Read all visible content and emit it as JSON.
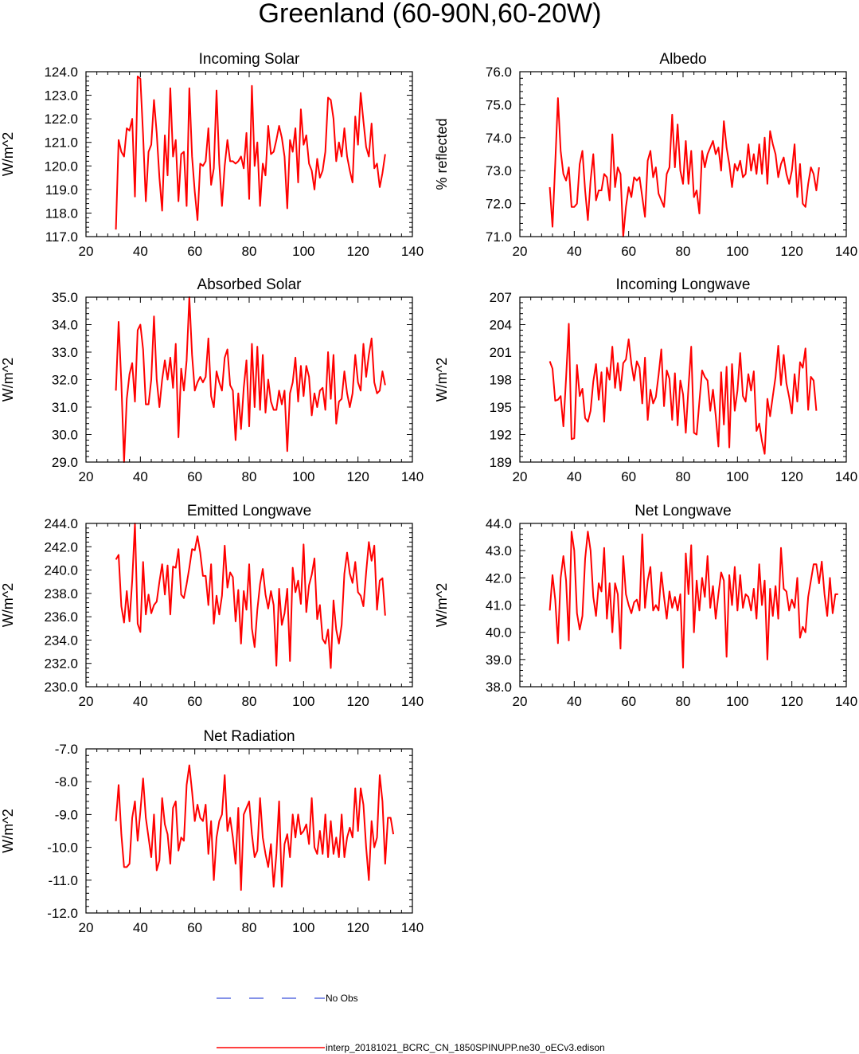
{
  "page_title": "Greenland (60-90N,60-20W)",
  "colors": {
    "model": "#ff0000",
    "obs": "#5b6ee1",
    "axis": "#000000"
  },
  "legend": {
    "obs_label": "No Obs",
    "model_label": "interp_20181021_BCRC_CN_1850SPINUPP.ne30_oECv3.edison"
  },
  "chart_data": [
    {
      "type": "line",
      "title": "Incoming Solar",
      "ylabel": "W/m^2",
      "xlim": [
        20,
        140
      ],
      "ylim": [
        117.0,
        124.0
      ],
      "xticks": [
        "20",
        "40",
        "60",
        "80",
        "100",
        "120",
        "140"
      ],
      "yticks": [
        "117.0",
        "118.0",
        "119.0",
        "120.0",
        "121.0",
        "122.0",
        "123.0",
        "124.0"
      ],
      "series": [
        {
          "name": "interp_20181021_BCRC_CN_1850SPINUPP.ne30_oECv3.edison",
          "x_start": 31,
          "values": [
            117.3,
            121.1,
            120.6,
            120.4,
            121.6,
            121.5,
            122.0,
            118.7,
            123.8,
            123.7,
            121.3,
            118.5,
            120.6,
            120.9,
            122.8,
            121.4,
            119.5,
            118.1,
            121.3,
            119.6,
            123.3,
            120.4,
            121.1,
            118.5,
            120.5,
            120.6,
            118.3,
            123.3,
            120.4,
            118.9,
            117.7,
            120.1,
            120.0,
            120.2,
            121.6,
            119.2,
            119.9,
            123.2,
            120.1,
            118.3,
            120.0,
            121.1,
            120.2,
            120.2,
            120.1,
            120.2,
            120.4,
            119.9,
            121.4,
            118.6,
            123.4,
            120.0,
            121.0,
            118.3,
            120.1,
            119.6,
            121.7,
            120.5,
            120.6,
            121.1,
            121.7,
            121.2,
            120.4,
            118.2,
            121.1,
            120.6,
            121.6,
            119.3,
            122.4,
            120.9,
            121.3,
            120.1,
            119.8,
            119.0,
            120.3,
            119.5,
            119.8,
            120.6,
            122.9,
            122.8,
            122.0,
            120.2,
            121.0,
            120.4,
            121.6,
            120.4,
            119.8,
            119.3,
            122.1,
            120.9,
            123.1,
            121.9,
            120.8,
            120.4,
            121.8,
            119.9,
            120.1,
            119.1,
            119.7,
            120.5
          ]
        }
      ]
    },
    {
      "type": "line",
      "title": "Albedo",
      "ylabel": "% reflected",
      "xlim": [
        20,
        140
      ],
      "ylim": [
        71.0,
        76.0
      ],
      "xticks": [
        "20",
        "40",
        "60",
        "80",
        "100",
        "120",
        "140"
      ],
      "yticks": [
        "71.0",
        "72.0",
        "73.0",
        "74.0",
        "75.0",
        "76.0"
      ],
      "series": [
        {
          "name": "interp_20181021_BCRC_CN_1850SPINUPP.ne30_oECv3.edison",
          "x_start": 31,
          "values": [
            72.5,
            71.3,
            73.2,
            75.2,
            73.6,
            72.9,
            72.7,
            73.1,
            71.9,
            71.9,
            72.0,
            73.2,
            73.6,
            72.4,
            71.5,
            72.7,
            73.5,
            72.1,
            72.4,
            72.4,
            72.9,
            72.8,
            72.1,
            74.1,
            72.5,
            73.1,
            72.9,
            71.0,
            71.9,
            72.5,
            72.2,
            72.8,
            72.7,
            72.8,
            72.2,
            71.6,
            73.3,
            73.6,
            72.8,
            73.1,
            72.3,
            72.1,
            71.9,
            72.9,
            73.1,
            74.7,
            73.1,
            74.4,
            73.0,
            72.6,
            73.9,
            72.6,
            73.6,
            72.2,
            72.4,
            71.7,
            73.6,
            73.1,
            73.5,
            73.7,
            73.9,
            73.5,
            73.7,
            73.0,
            74.5,
            73.7,
            73.2,
            72.5,
            73.2,
            73.0,
            73.3,
            72.8,
            72.9,
            73.8,
            73.0,
            73.5,
            72.9,
            73.8,
            72.9,
            74.0,
            72.6,
            74.2,
            73.8,
            73.5,
            72.8,
            73.2,
            73.4,
            72.9,
            72.6,
            73.0,
            73.8,
            72.2,
            73.2,
            72.0,
            71.9,
            72.6,
            73.1,
            72.9,
            72.4,
            73.1
          ]
        }
      ]
    },
    {
      "type": "line",
      "title": "Absorbed Solar",
      "ylabel": "W/m^2",
      "xlim": [
        20,
        140
      ],
      "ylim": [
        29.0,
        35.0
      ],
      "xticks": [
        "20",
        "40",
        "60",
        "80",
        "100",
        "120",
        "140"
      ],
      "yticks": [
        "29.0",
        "30.0",
        "31.0",
        "32.0",
        "33.0",
        "34.0",
        "35.0"
      ],
      "series": [
        {
          "name": "interp_20181021_BCRC_CN_1850SPINUPP.ne30_oECv3.edison",
          "x_start": 31,
          "values": [
            31.6,
            34.1,
            31.9,
            29.0,
            31.3,
            32.2,
            32.6,
            31.2,
            33.8,
            34.0,
            33.1,
            31.1,
            31.1,
            32.0,
            34.3,
            32.0,
            31.0,
            32.0,
            32.7,
            32.0,
            32.8,
            31.7,
            33.3,
            29.9,
            32.4,
            31.6,
            32.7,
            35.0,
            32.9,
            31.6,
            31.9,
            32.1,
            31.9,
            32.1,
            33.5,
            31.4,
            31.0,
            32.3,
            31.9,
            31.6,
            32.8,
            33.1,
            31.8,
            31.6,
            29.8,
            31.5,
            30.2,
            31.7,
            32.7,
            30.3,
            33.3,
            31.0,
            33.2,
            30.9,
            32.9,
            30.8,
            32.0,
            31.2,
            30.9,
            30.9,
            31.6,
            31.1,
            31.6,
            29.4,
            31.5,
            31.9,
            32.8,
            31.2,
            32.5,
            31.4,
            32.5,
            32.1,
            30.7,
            31.5,
            31.0,
            31.6,
            31.7,
            30.9,
            33.0,
            31.3,
            32.9,
            30.4,
            31.2,
            31.3,
            32.3,
            31.5,
            31.0,
            31.5,
            32.9,
            31.9,
            31.6,
            33.3,
            32.1,
            32.9,
            33.5,
            31.9,
            31.5,
            31.6,
            32.3,
            31.8
          ]
        }
      ]
    },
    {
      "type": "line",
      "title": "Incoming Longwave",
      "ylabel": "W/m^2",
      "xlim": [
        20,
        140
      ],
      "ylim": [
        189,
        207
      ],
      "xticks": [
        "20",
        "40",
        "60",
        "80",
        "100",
        "120",
        "140"
      ],
      "yticks": [
        "189",
        "192",
        "195",
        "198",
        "201",
        "204",
        "207"
      ],
      "series": [
        {
          "name": "interp_20181021_BCRC_CN_1850SPINUPP.ne30_oECv3.edison",
          "x_start": 31,
          "values": [
            200.0,
            199.2,
            195.7,
            195.8,
            196.2,
            192.9,
            198.2,
            204.1,
            191.5,
            191.6,
            199.6,
            196.2,
            197.0,
            193.8,
            193.4,
            194.6,
            197.8,
            199.7,
            195.8,
            198.8,
            193.4,
            199.3,
            198.0,
            201.6,
            197.1,
            199.8,
            196.8,
            199.8,
            200.2,
            202.4,
            199.7,
            197.9,
            200.0,
            199.3,
            195.4,
            200.4,
            193.6,
            196.9,
            195.4,
            196.1,
            198.5,
            201.3,
            195.1,
            199.0,
            198.1,
            193.6,
            198.7,
            193.0,
            197.9,
            196.4,
            192.2,
            197.2,
            201.6,
            192.2,
            192.0,
            195.6,
            199.0,
            198.3,
            197.9,
            194.6,
            196.9,
            194.1,
            190.7,
            198.8,
            193.1,
            199.4,
            190.6,
            199.7,
            194.6,
            196.8,
            200.9,
            196.2,
            195.6,
            198.6,
            196.8,
            198.9,
            192.4,
            193.2,
            191.3,
            189.9,
            195.9,
            194.0,
            196.2,
            198.3,
            201.7,
            197.4,
            200.7,
            197.6,
            196.1,
            194.3,
            198.6,
            195.6,
            199.9,
            199.3,
            201.4,
            194.7,
            198.3,
            197.9,
            194.6
          ]
        }
      ]
    },
    {
      "type": "line",
      "title": "Emitted Longwave",
      "ylabel": "W/m^2",
      "xlim": [
        20,
        140
      ],
      "ylim": [
        230.0,
        244.0
      ],
      "xticks": [
        "20",
        "40",
        "60",
        "80",
        "100",
        "120",
        "140"
      ],
      "yticks": [
        "230.0",
        "232.0",
        "234.0",
        "236.0",
        "238.0",
        "240.0",
        "242.0",
        "244.0"
      ],
      "series": [
        {
          "name": "interp_20181021_BCRC_CN_1850SPINUPP.ne30_oECv3.edison",
          "x_start": 31,
          "values": [
            240.9,
            241.3,
            236.9,
            235.5,
            238.2,
            235.6,
            239.1,
            244.0,
            235.4,
            234.7,
            240.7,
            236.2,
            237.9,
            236.3,
            237.0,
            237.3,
            239.0,
            240.5,
            237.9,
            240.4,
            236.2,
            240.3,
            240.2,
            241.8,
            237.9,
            237.6,
            238.8,
            240.2,
            241.8,
            241.7,
            242.9,
            241.5,
            239.5,
            239.5,
            237.0,
            240.5,
            235.4,
            237.8,
            236.2,
            237.8,
            242.1,
            238.5,
            239.8,
            239.4,
            235.6,
            238.3,
            233.7,
            238.2,
            236.6,
            240.5,
            235.0,
            233.4,
            236.6,
            238.8,
            240.1,
            237.9,
            236.7,
            238.2,
            237.0,
            231.8,
            238.4,
            235.3,
            236.3,
            238.4,
            232.2,
            240.2,
            238.1,
            239.1,
            237.1,
            242.2,
            236.4,
            238.7,
            239.6,
            241.0,
            235.8,
            237.0,
            234.1,
            233.7,
            234.9,
            231.6,
            237.4,
            234.9,
            233.7,
            235.3,
            239.7,
            241.5,
            239.7,
            238.9,
            240.7,
            238.1,
            237.8,
            236.9,
            239.8,
            242.4,
            240.8,
            242.1,
            236.6,
            239.1,
            239.3,
            236.1
          ]
        }
      ]
    },
    {
      "type": "line",
      "title": "Net Longwave",
      "ylabel": "W/m^2",
      "xlim": [
        20,
        140
      ],
      "ylim": [
        38.0,
        44.0
      ],
      "xticks": [
        "20",
        "40",
        "60",
        "80",
        "100",
        "120",
        "140"
      ],
      "yticks": [
        "38.0",
        "39.0",
        "40.0",
        "41.0",
        "42.0",
        "43.0",
        "44.0"
      ],
      "series": [
        {
          "name": "interp_20181021_BCRC_CN_1850SPINUPP.ne30_oECv3.edison",
          "x_start": 31,
          "values": [
            40.8,
            42.1,
            41.2,
            39.6,
            42.0,
            42.8,
            41.9,
            39.7,
            43.7,
            43.0,
            40.7,
            40.1,
            40.6,
            42.7,
            43.7,
            43.0,
            41.3,
            40.6,
            41.8,
            41.5,
            43.1,
            40.5,
            41.8,
            40.0,
            41.8,
            41.4,
            39.4,
            42.8,
            41.4,
            41.0,
            40.7,
            41.1,
            41.2,
            40.8,
            43.6,
            40.9,
            41.9,
            42.4,
            40.8,
            41.0,
            40.8,
            42.2,
            41.3,
            40.5,
            41.5,
            40.9,
            41.3,
            40.8,
            41.4,
            38.7,
            42.9,
            41.4,
            43.2,
            40.0,
            41.9,
            40.8,
            42.0,
            41.3,
            42.8,
            40.9,
            41.7,
            40.5,
            41.4,
            42.2,
            41.9,
            39.1,
            42.1,
            41.0,
            42.4,
            40.8,
            42.1,
            40.9,
            41.4,
            41.3,
            40.8,
            41.6,
            40.5,
            42.5,
            41.0,
            41.9,
            39.0,
            41.6,
            40.6,
            41.7,
            40.5,
            43.1,
            41.6,
            41.5,
            40.8,
            41.2,
            40.9,
            42.0,
            39.8,
            40.2,
            40.0,
            41.3,
            41.9,
            42.5,
            42.5,
            41.8,
            42.6,
            41.4,
            40.6,
            42.0,
            40.7,
            41.4,
            41.4
          ]
        }
      ]
    },
    {
      "type": "line",
      "title": "Net Radiation",
      "ylabel": "W/m^2",
      "xlim": [
        20,
        140
      ],
      "ylim": [
        -12.0,
        -7.0
      ],
      "xticks": [
        "20",
        "40",
        "60",
        "80",
        "100",
        "120",
        "140"
      ],
      "yticks": [
        "-12.0",
        "-11.0",
        "-10.0",
        "-9.0",
        "-8.0",
        "-7.0"
      ],
      "series": [
        {
          "name": "interp_20181021_BCRC_CN_1850SPINUPP.ne30_oECv3.edison",
          "x_start": 31,
          "values": [
            -9.2,
            -8.1,
            -9.6,
            -10.6,
            -10.6,
            -10.5,
            -9.1,
            -8.6,
            -9.8,
            -8.9,
            -7.9,
            -9.1,
            -9.7,
            -10.3,
            -9.0,
            -10.7,
            -10.4,
            -8.5,
            -9.3,
            -9.6,
            -10.5,
            -8.8,
            -8.6,
            -10.1,
            -9.7,
            -9.8,
            -8.1,
            -7.5,
            -8.3,
            -9.2,
            -8.7,
            -9.1,
            -9.2,
            -8.7,
            -10.2,
            -9.2,
            -11.0,
            -9.7,
            -9.2,
            -9.0,
            -7.8,
            -9.5,
            -9.1,
            -9.7,
            -10.5,
            -8.8,
            -11.3,
            -9.0,
            -8.8,
            -8.6,
            -9.6,
            -10.3,
            -10.1,
            -8.5,
            -9.7,
            -10.2,
            -10.6,
            -9.9,
            -11.2,
            -10.2,
            -8.6,
            -11.2,
            -9.9,
            -9.6,
            -10.3,
            -9.0,
            -9.7,
            -9.0,
            -9.6,
            -9.5,
            -9.3,
            -9.9,
            -8.5,
            -10.0,
            -10.2,
            -9.5,
            -10.2,
            -9.0,
            -10.3,
            -9.2,
            -10.2,
            -9.7,
            -10.3,
            -9.0,
            -10.3,
            -9.7,
            -9.4,
            -9.7,
            -8.2,
            -9.5,
            -8.2,
            -8.7,
            -10.0,
            -11.0,
            -9.2,
            -10.0,
            -9.7,
            -7.8,
            -8.6,
            -10.5,
            -9.1,
            -9.1,
            -9.6
          ]
        }
      ]
    }
  ]
}
